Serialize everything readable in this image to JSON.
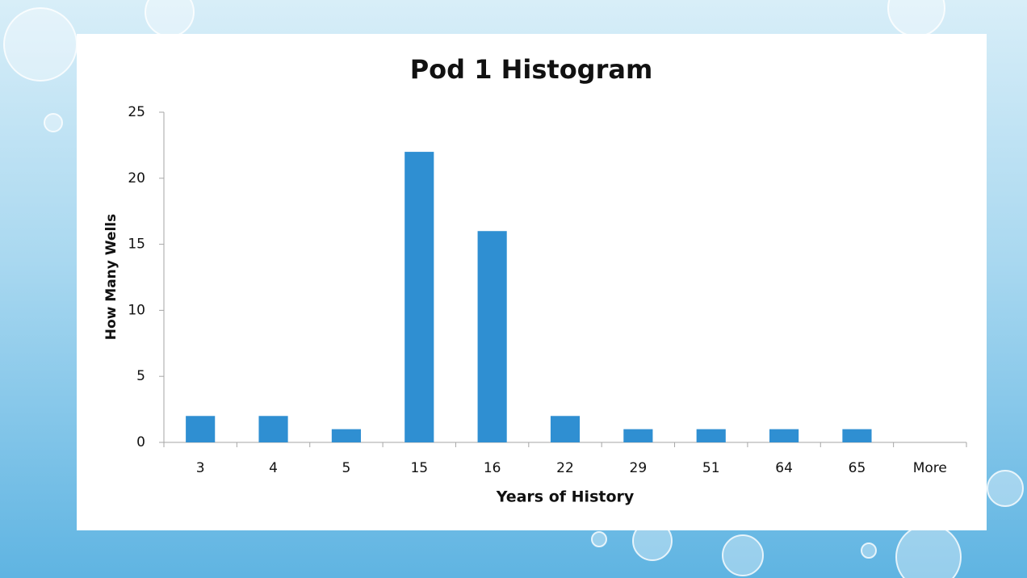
{
  "chart_data": {
    "type": "bar",
    "title": "Pod 1 Histogram",
    "x_label": "Years of History",
    "y_label": "How Many Wells",
    "categories": [
      "3",
      "4",
      "5",
      "15",
      "16",
      "22",
      "29",
      "51",
      "64",
      "65",
      "More"
    ],
    "values": [
      2,
      2,
      1,
      22,
      16,
      2,
      1,
      1,
      1,
      1,
      0
    ],
    "color": "#2f8fd2",
    "ylim": [
      0,
      25
    ],
    "yticks": [
      0,
      5,
      10,
      15,
      20,
      25
    ],
    "grid": false
  }
}
